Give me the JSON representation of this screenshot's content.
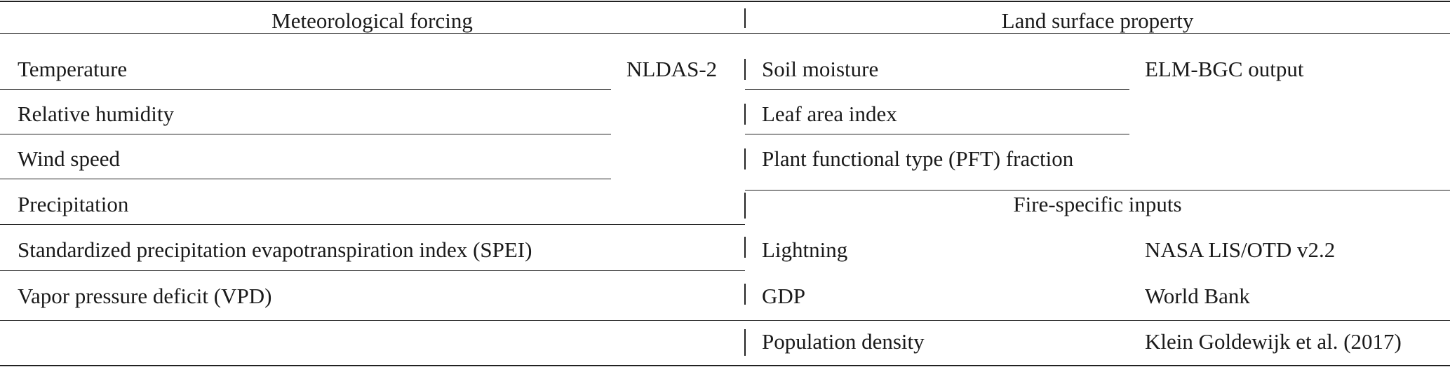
{
  "table": {
    "left": {
      "header": "Meteorological forcing",
      "source": "NLDAS-2",
      "rows": [
        "Temperature",
        "Relative humidity",
        "Wind speed",
        "Precipitation",
        "Standardized precipitation evapotranspiration index (SPEI)",
        "Vapor pressure deficit (VPD)"
      ]
    },
    "right": {
      "header": "Land surface property",
      "land_rows": [
        {
          "name": "Soil moisture",
          "source": "ELM-BGC output"
        },
        {
          "name": "Leaf area index",
          "source": ""
        },
        {
          "name": "Plant functional type (PFT) fraction",
          "source": ""
        }
      ],
      "fire_header": "Fire-specific inputs",
      "fire_rows": [
        {
          "name": "Lightning",
          "source": "NASA LIS/OTD v2.2"
        },
        {
          "name": "GDP",
          "source": "World Bank"
        },
        {
          "name": "Population density",
          "source": "Klein Goldewijk et al. (2017)"
        }
      ]
    }
  }
}
